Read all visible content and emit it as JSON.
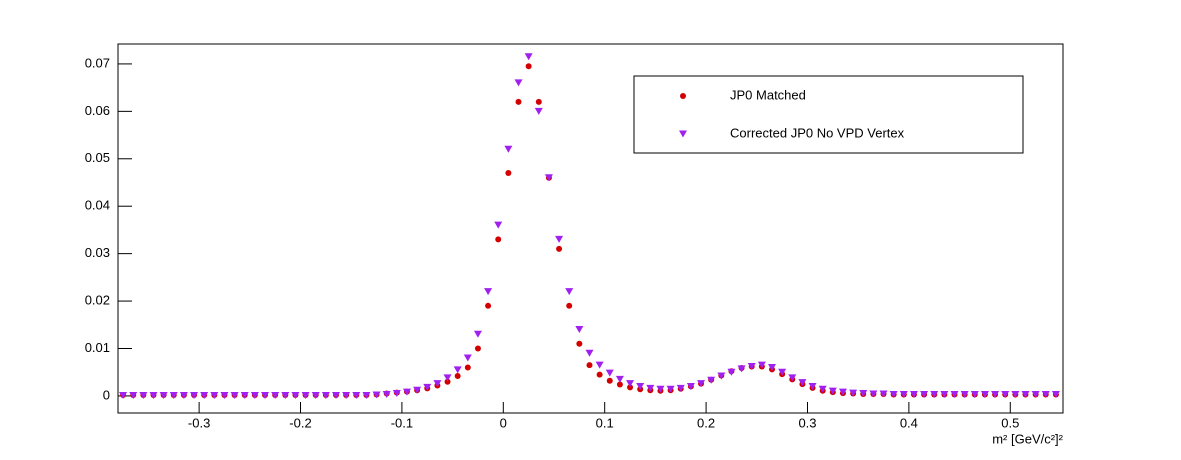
{
  "chart_data": {
    "type": "scatter",
    "x_label": "m² [GeV/c²]²",
    "x": [
      -0.375,
      -0.365,
      -0.355,
      -0.345,
      -0.335,
      -0.325,
      -0.315,
      -0.305,
      -0.295,
      -0.285,
      -0.275,
      -0.265,
      -0.255,
      -0.245,
      -0.235,
      -0.225,
      -0.215,
      -0.205,
      -0.195,
      -0.185,
      -0.175,
      -0.165,
      -0.155,
      -0.145,
      -0.135,
      -0.125,
      -0.115,
      -0.105,
      -0.095,
      -0.085,
      -0.075,
      -0.065,
      -0.055,
      -0.045,
      -0.035,
      -0.025,
      -0.015,
      -0.005,
      0.005,
      0.015,
      0.025,
      0.035,
      0.045,
      0.055,
      0.065,
      0.075,
      0.085,
      0.095,
      0.105,
      0.115,
      0.125,
      0.135,
      0.145,
      0.155,
      0.165,
      0.175,
      0.185,
      0.195,
      0.205,
      0.215,
      0.225,
      0.235,
      0.245,
      0.255,
      0.265,
      0.275,
      0.285,
      0.295,
      0.305,
      0.315,
      0.325,
      0.335,
      0.345,
      0.355,
      0.365,
      0.375,
      0.385,
      0.395,
      0.405,
      0.415,
      0.425,
      0.435,
      0.445,
      0.455,
      0.465,
      0.475,
      0.485,
      0.495,
      0.505,
      0.515,
      0.525,
      0.535,
      0.545
    ],
    "series": [
      {
        "name": "JP0 Matched",
        "color": "#d40000",
        "marker": "circle",
        "values": [
          0.0002,
          0.0002,
          0.0002,
          0.0002,
          0.0002,
          0.0002,
          0.0002,
          0.0002,
          0.0002,
          0.0002,
          0.0002,
          0.0002,
          0.0002,
          0.0002,
          0.0002,
          0.0002,
          0.0002,
          0.0002,
          0.0002,
          0.0002,
          0.0002,
          0.0002,
          0.0002,
          0.0002,
          0.0002,
          0.0003,
          0.0005,
          0.0007,
          0.0009,
          0.0012,
          0.0016,
          0.0022,
          0.003,
          0.0042,
          0.006,
          0.01,
          0.019,
          0.033,
          0.047,
          0.062,
          0.0695,
          0.062,
          0.046,
          0.031,
          0.019,
          0.011,
          0.0065,
          0.0045,
          0.0032,
          0.0024,
          0.0018,
          0.0014,
          0.0012,
          0.0011,
          0.0012,
          0.0015,
          0.002,
          0.0026,
          0.0034,
          0.0043,
          0.0052,
          0.0059,
          0.0062,
          0.0062,
          0.0056,
          0.0046,
          0.0035,
          0.0025,
          0.0017,
          0.0011,
          0.0008,
          0.0006,
          0.0005,
          0.0004,
          0.0004,
          0.0004,
          0.0003,
          0.0003,
          0.0003,
          0.0003,
          0.0003,
          0.0003,
          0.0003,
          0.0003,
          0.0003,
          0.0003,
          0.0003,
          0.0003,
          0.0003,
          0.0003,
          0.0003,
          0.0003,
          0.0003
        ]
      },
      {
        "name": "Corrected JP0 No VPD Vertex",
        "color": "#a020f0",
        "marker": "triangle-down",
        "values": [
          0.0001,
          0.0001,
          0.0001,
          0.0001,
          0.0001,
          0.0001,
          0.0001,
          0.0001,
          0.0001,
          0.0001,
          0.0001,
          0.0001,
          0.0001,
          0.0001,
          0.0001,
          0.0001,
          0.0001,
          0.0001,
          0.0001,
          0.0001,
          0.0001,
          0.0001,
          0.0001,
          0.0001,
          0.0001,
          0.0002,
          0.0003,
          0.0005,
          0.0008,
          0.0012,
          0.0018,
          0.0026,
          0.0038,
          0.0055,
          0.008,
          0.013,
          0.022,
          0.036,
          0.052,
          0.066,
          0.0715,
          0.06,
          0.046,
          0.033,
          0.022,
          0.014,
          0.009,
          0.0065,
          0.0048,
          0.0035,
          0.0026,
          0.002,
          0.0016,
          0.0014,
          0.0014,
          0.0016,
          0.002,
          0.0026,
          0.0033,
          0.0042,
          0.005,
          0.0057,
          0.0062,
          0.0065,
          0.006,
          0.005,
          0.0038,
          0.0028,
          0.002,
          0.0014,
          0.001,
          0.0008,
          0.0006,
          0.0005,
          0.0004,
          0.0004,
          0.0003,
          0.0003,
          0.0003,
          0.0003,
          0.0003,
          0.0003,
          0.0003,
          0.0003,
          0.0003,
          0.0003,
          0.0003,
          0.0003,
          0.0003,
          0.0003,
          0.0003,
          0.0003,
          0.0003
        ]
      }
    ],
    "xlim": [
      -0.38,
      0.552
    ],
    "xticks": [
      -0.3,
      -0.2,
      -0.1,
      0,
      0.1,
      0.2,
      0.3,
      0.4,
      0.5
    ],
    "ylim": [
      -0.0036,
      0.0742
    ],
    "yticks": [
      0,
      0.01,
      0.02,
      0.03,
      0.04,
      0.05,
      0.06,
      0.07
    ],
    "legend": "top-right"
  }
}
